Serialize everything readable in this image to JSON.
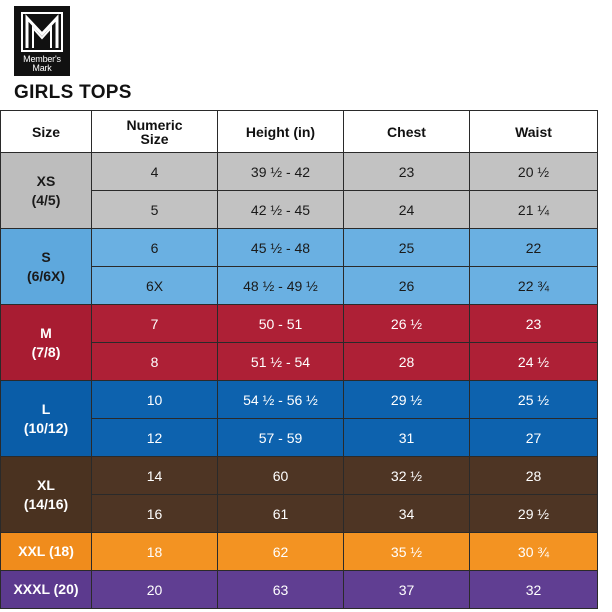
{
  "logo": {
    "brand_line1": "Member's",
    "brand_line2": "Mark"
  },
  "title": "GIRLS TOPS",
  "table": {
    "headers": [
      "Size",
      "Numeric Size",
      "Height (in)",
      "Chest",
      "Waist"
    ],
    "header_numeric_line1": "Numeric",
    "header_numeric_line2": "Size",
    "groups": [
      {
        "size_line1": "XS",
        "size_line2": "(4/5)",
        "colors": {
          "size_bg": "#bdbdbd",
          "rows_bg": [
            "#c2c2c2",
            "#c2c2c2"
          ],
          "text": "#1a1a1a"
        },
        "rows": [
          {
            "numeric": "4",
            "height": "39 ½ - 42",
            "chest": "23",
            "waist": "20 ½"
          },
          {
            "numeric": "5",
            "height": "42 ½ - 45",
            "chest": "24",
            "waist": "21 ¼"
          }
        ]
      },
      {
        "size_line1": "S",
        "size_line2": "(6/6X)",
        "colors": {
          "size_bg": "#5ea8dd",
          "rows_bg": [
            "#6ab0e2",
            "#6ab0e2"
          ],
          "text": "#1a1a1a"
        },
        "rows": [
          {
            "numeric": "6",
            "height": "45 ½ - 48",
            "chest": "25",
            "waist": "22"
          },
          {
            "numeric": "6X",
            "height": "48 ½ - 49 ½",
            "chest": "26",
            "waist": "22 ¾"
          }
        ]
      },
      {
        "size_line1": "M",
        "size_line2": "(7/8)",
        "colors": {
          "size_bg": "#a81c32",
          "rows_bg": [
            "#ae2036",
            "#ae2036"
          ],
          "text": "#ffffff"
        },
        "rows": [
          {
            "numeric": "7",
            "height": "50 - 51",
            "chest": "26 ½",
            "waist": "23"
          },
          {
            "numeric": "8",
            "height": "51 ½ - 54",
            "chest": "28",
            "waist": "24 ½"
          }
        ]
      },
      {
        "size_line1": "L",
        "size_line2": "(10/12)",
        "colors": {
          "size_bg": "#0a5da8",
          "rows_bg": [
            "#0d62ae",
            "#0d62ae"
          ],
          "text": "#ffffff"
        },
        "rows": [
          {
            "numeric": "10",
            "height": "54 ½ - 56 ½",
            "chest": "29 ½",
            "waist": "25 ½"
          },
          {
            "numeric": "12",
            "height": "57 - 59",
            "chest": "31",
            "waist": "27"
          }
        ]
      },
      {
        "size_line1": "XL",
        "size_line2": "(14/16)",
        "colors": {
          "size_bg": "#4a3220",
          "rows_bg": [
            "#4e3524",
            "#4e3524"
          ],
          "text": "#ffffff"
        },
        "rows": [
          {
            "numeric": "14",
            "height": "60",
            "chest": "32 ½",
            "waist": "28"
          },
          {
            "numeric": "16",
            "height": "61",
            "chest": "34",
            "waist": "29 ½"
          }
        ]
      },
      {
        "size_line1": "XXL (18)",
        "size_line2": "",
        "colors": {
          "size_bg": "#f08c1c",
          "rows_bg": [
            "#f39322"
          ],
          "text": "#ffffff"
        },
        "rows": [
          {
            "numeric": "18",
            "height": "62",
            "chest": "35 ½",
            "waist": "30 ¾"
          }
        ]
      },
      {
        "size_line1": "XXXL (20)",
        "size_line2": "",
        "colors": {
          "size_bg": "#5c3a8e",
          "rows_bg": [
            "#603e92"
          ],
          "text": "#ffffff"
        },
        "rows": [
          {
            "numeric": "20",
            "height": "63",
            "chest": "37",
            "waist": "32"
          }
        ]
      }
    ]
  }
}
